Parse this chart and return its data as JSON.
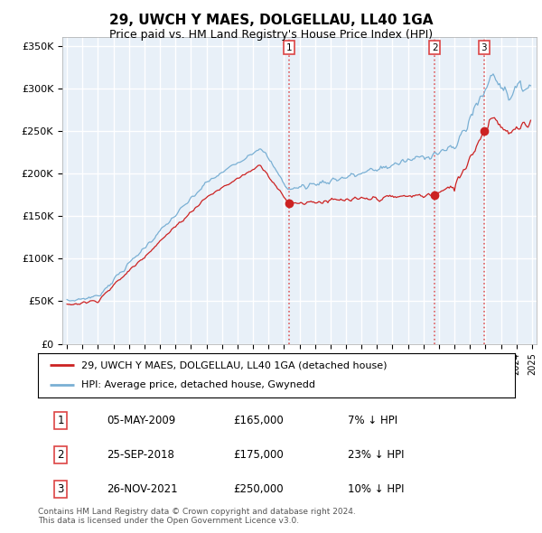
{
  "title": "29, UWCH Y MAES, DOLGELLAU, LL40 1GA",
  "subtitle": "Price paid vs. HM Land Registry's House Price Index (HPI)",
  "ylim": [
    0,
    360000
  ],
  "yticks": [
    0,
    50000,
    100000,
    150000,
    200000,
    250000,
    300000,
    350000
  ],
  "ytick_labels": [
    "£0",
    "£50K",
    "£100K",
    "£150K",
    "£200K",
    "£250K",
    "£300K",
    "£350K"
  ],
  "sale_year_floats": [
    2009.34,
    2018.73,
    2021.9
  ],
  "sale_prices": [
    165000,
    175000,
    250000
  ],
  "sale_labels": [
    "1",
    "2",
    "3"
  ],
  "vline_color": "#dd4444",
  "hpi_color": "#7ab0d4",
  "price_color": "#cc2222",
  "grid_color": "#cccccc",
  "chart_bg_color": "#e8f0f8",
  "legend_entries": [
    "29, UWCH Y MAES, DOLGELLAU, LL40 1GA (detached house)",
    "HPI: Average price, detached house, Gwynedd"
  ],
  "table_rows": [
    [
      "1",
      "05-MAY-2009",
      "£165,000",
      "7% ↓ HPI"
    ],
    [
      "2",
      "25-SEP-2018",
      "£175,000",
      "23% ↓ HPI"
    ],
    [
      "3",
      "26-NOV-2021",
      "£250,000",
      "10% ↓ HPI"
    ]
  ],
  "footnote": "Contains HM Land Registry data © Crown copyright and database right 2024.\nThis data is licensed under the Open Government Licence v3.0."
}
